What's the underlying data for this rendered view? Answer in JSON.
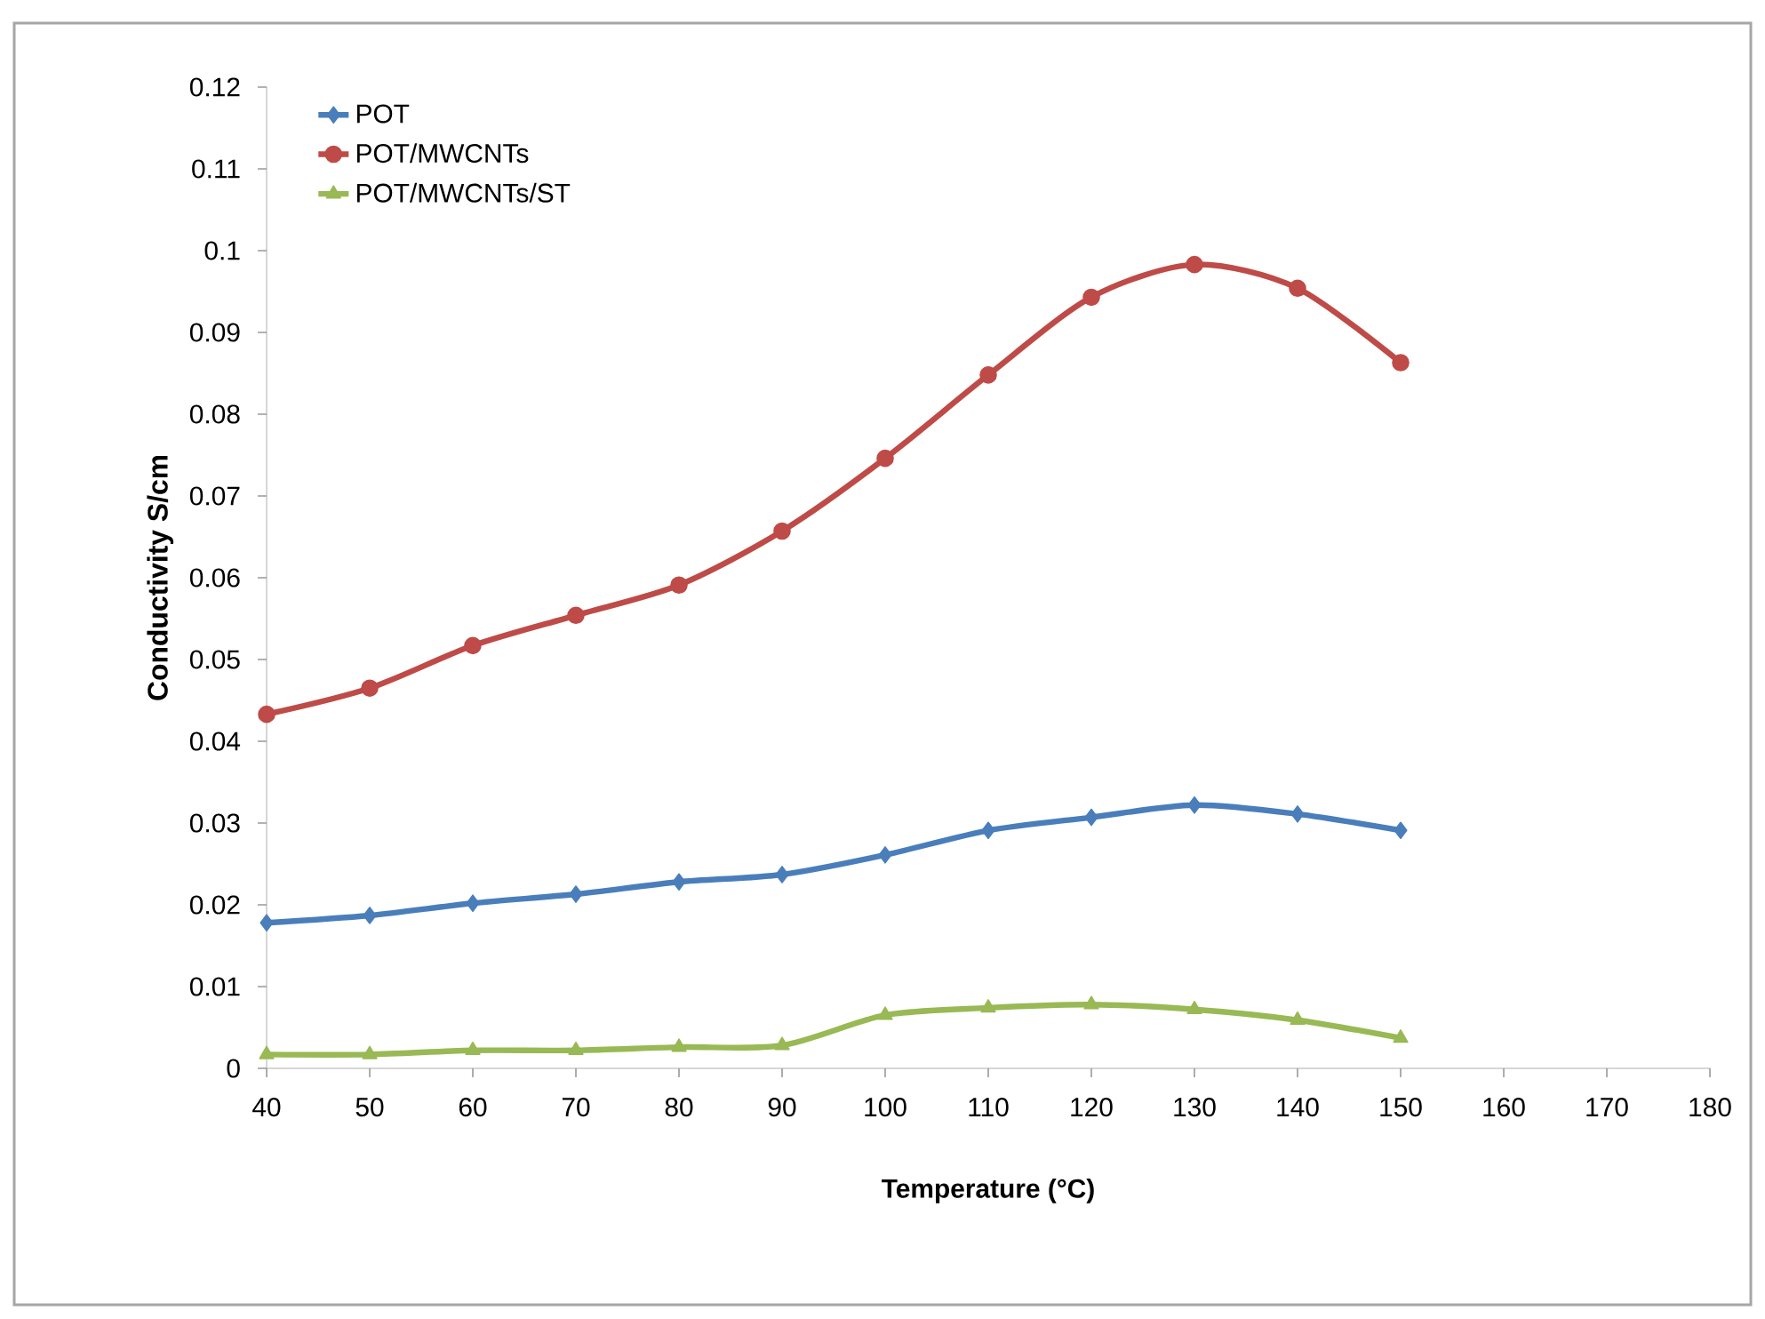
{
  "chart_data": {
    "type": "line",
    "xlabel": "Temperature (°C)",
    "ylabel": "Conductivity  S/cm",
    "x": [
      40,
      50,
      60,
      70,
      80,
      90,
      100,
      110,
      120,
      130,
      140,
      150
    ],
    "series": [
      {
        "name": "POT",
        "color": "#4a7ebb",
        "marker": "diamond",
        "values": [
          0.0178,
          0.0187,
          0.0202,
          0.0213,
          0.0228,
          0.0237,
          0.0261,
          0.0291,
          0.0307,
          0.0322,
          0.0311,
          0.0291
        ]
      },
      {
        "name": "POT/MWCNTs",
        "color": "#be4b48",
        "marker": "circle",
        "values": [
          0.0433,
          0.0465,
          0.0517,
          0.0554,
          0.0591,
          0.0657,
          0.0746,
          0.0848,
          0.0943,
          0.0983,
          0.0954,
          0.0863
        ]
      },
      {
        "name": "POT/MWCNTs/ST",
        "color": "#98b954",
        "marker": "triangle",
        "values": [
          0.0017,
          0.0017,
          0.0022,
          0.0022,
          0.0026,
          0.0028,
          0.0065,
          0.0074,
          0.0078,
          0.0072,
          0.0059,
          0.0037
        ]
      }
    ],
    "xlim": [
      40,
      180
    ],
    "xticks": [
      40,
      50,
      60,
      70,
      80,
      90,
      100,
      110,
      120,
      130,
      140,
      150,
      160,
      170,
      180
    ],
    "ylim": [
      0,
      0.12
    ],
    "yticks": [
      0,
      0.01,
      0.02,
      0.03,
      0.04,
      0.05,
      0.06,
      0.07,
      0.08,
      0.09,
      0.1,
      0.11,
      0.12
    ],
    "grid": false,
    "legend": "top left"
  }
}
